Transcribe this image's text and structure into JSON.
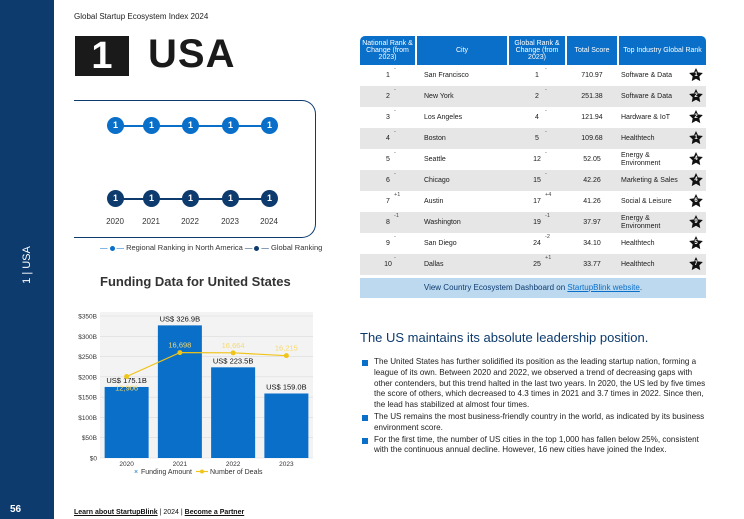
{
  "page": {
    "header_title": "Global Startup Ecosystem Index 2024",
    "rank": "1",
    "country": "USA",
    "side_label": "1 | USA",
    "page_number": "56"
  },
  "ranking": {
    "years": [
      "2020",
      "2021",
      "2022",
      "2023",
      "2024"
    ],
    "regional": [
      "1",
      "1",
      "1",
      "1",
      "1"
    ],
    "global": [
      "1",
      "1",
      "1",
      "1",
      "1"
    ],
    "legend_regional": "Regional Ranking in North America",
    "legend_global": "Global Ranking",
    "colors": {
      "regional": "#0a6fc9",
      "global": "#0d3b6e"
    }
  },
  "chart_title": "Funding Data for United States",
  "chart_data": {
    "type": "bar",
    "title": "Funding Data for United States",
    "categories": [
      "2020",
      "2021",
      "2022",
      "2023"
    ],
    "series": [
      {
        "name": "Funding Amount",
        "type": "bar",
        "values": [
          175.1,
          326.9,
          223.5,
          159.0
        ],
        "labels": [
          "US$ 175.1B",
          "US$ 326.9B",
          "US$ 223.5B",
          "US$ 159.0B"
        ],
        "color": "#0a6fc9"
      },
      {
        "name": "Number of Deals",
        "type": "line",
        "values": [
          12906,
          16698,
          16664,
          16215
        ],
        "labels": [
          "12,906",
          "16,698",
          "16,664",
          "16,215"
        ],
        "color": "#f0c419"
      }
    ],
    "y_ticks": [
      "$0",
      "$50B",
      "$100B",
      "$150B",
      "$200B",
      "$250B",
      "$300B",
      "$350B"
    ],
    "ylim": [
      0,
      350
    ],
    "deals_ylim": [
      0,
      22500
    ],
    "legend": [
      "Funding Amount",
      "Number of Deals"
    ]
  },
  "table": {
    "headers": [
      "National Rank & Change (from 2023)",
      "City",
      "Global Rank & Change (from 2023)",
      "Total Score",
      "Top Industry Global Rank"
    ],
    "rows": [
      {
        "nat": "1",
        "nat_chg": "-",
        "city": "San Francisco",
        "glob": "1",
        "glob_chg": "-",
        "score": "710.97",
        "industry": "Software & Data",
        "ind_rank": "1"
      },
      {
        "nat": "2",
        "nat_chg": "-",
        "city": "New York",
        "glob": "2",
        "glob_chg": "-",
        "score": "251.38",
        "industry": "Software & Data",
        "ind_rank": "2"
      },
      {
        "nat": "3",
        "nat_chg": "-",
        "city": "Los Angeles",
        "glob": "4",
        "glob_chg": "-",
        "score": "121.94",
        "industry": "Hardware & IoT",
        "ind_rank": "2"
      },
      {
        "nat": "4",
        "nat_chg": "-",
        "city": "Boston",
        "glob": "5",
        "glob_chg": "-",
        "score": "109.68",
        "industry": "Healthtech",
        "ind_rank": "1"
      },
      {
        "nat": "5",
        "nat_chg": "-",
        "city": "Seattle",
        "glob": "12",
        "glob_chg": "-",
        "score": "52.05",
        "industry": "Energy & Environment",
        "ind_rank": "4"
      },
      {
        "nat": "6",
        "nat_chg": "-",
        "city": "Chicago",
        "glob": "15",
        "glob_chg": "-",
        "score": "42.26",
        "industry": "Marketing & Sales",
        "ind_rank": "4"
      },
      {
        "nat": "7",
        "nat_chg": "+1",
        "city": "Austin",
        "glob": "17",
        "glob_chg": "+4",
        "score": "41.26",
        "industry": "Social & Leisure",
        "ind_rank": "6"
      },
      {
        "nat": "8",
        "nat_chg": "-1",
        "city": "Washington",
        "glob": "19",
        "glob_chg": "-1",
        "score": "37.97",
        "industry": "Energy & Environment",
        "ind_rank": "9"
      },
      {
        "nat": "9",
        "nat_chg": "-",
        "city": "San Diego",
        "glob": "24",
        "glob_chg": "-2",
        "score": "34.10",
        "industry": "Healthtech",
        "ind_rank": "5"
      },
      {
        "nat": "10",
        "nat_chg": "-",
        "city": "Dallas",
        "glob": "25",
        "glob_chg": "+1",
        "score": "33.77",
        "industry": "Healthtech",
        "ind_rank": "7"
      }
    ]
  },
  "dashboard": {
    "text": "View Country Ecosystem Dashboard on ",
    "link": "StartupBlink website",
    "end": "."
  },
  "headline": "The US maintains its absolute leadership position.",
  "bullets": [
    "The United States has further solidified its position as the leading startup nation, forming a league of its own. Between 2020 and 2022, we observed a trend of decreasing gaps with other contenders, but this trend halted in the last two years. In 2020, the US led by five times the score of others, which decreased to 4.3 times in 2021 and 3.7 times in 2022. Since then, the lead has stabilized at almost four times.",
    "The US remains the most business-friendly country in the world, as indicated by its business environment score.",
    "For the first time, the number of US cities in the top 1,000 has fallen below 25%, consistent with the continuous annual decline. However, 16 new cities have joined the Index."
  ],
  "footer": {
    "learn": "Learn about StartupBlink",
    "sep1": "|",
    "year": "2024",
    "sep2": "|",
    "partner": "Become a Partner"
  }
}
